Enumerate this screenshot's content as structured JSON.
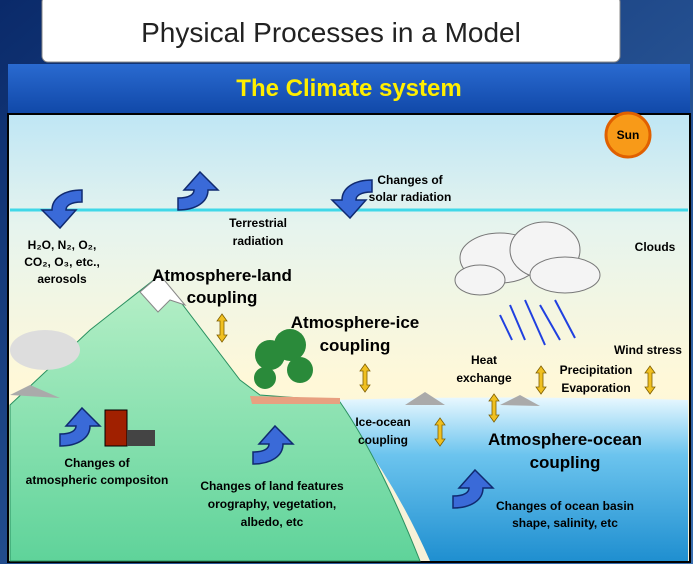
{
  "header": {
    "title": "Physical Processes in a Model"
  },
  "banner": {
    "title": "The Climate system"
  },
  "labels": {
    "sun": [
      "Sun"
    ],
    "solar": [
      "Changes of",
      "solar radiation"
    ],
    "terrestrial": [
      "Terrestrial",
      "radiation"
    ],
    "gases": [
      "H₂O, N₂, O₂,",
      "CO₂, O₃, etc.,",
      "aerosols"
    ],
    "clouds": [
      "Clouds"
    ],
    "atm_land": [
      "Atmosphere-land",
      "coupling"
    ],
    "atm_ice": [
      "Atmosphere-ice",
      "coupling"
    ],
    "heat": [
      "Heat",
      "exchange"
    ],
    "precip": [
      "Precipitation",
      "Evaporation"
    ],
    "wind": [
      "Wind stress"
    ],
    "ice_ocean": [
      "Ice-ocean",
      "coupling"
    ],
    "atm_ocean": [
      "Atmosphere-ocean",
      "coupling"
    ],
    "composition": [
      "Changes of",
      "atmospheric compositon"
    ],
    "land": [
      "Changes of land features",
      "orography, vegetation,",
      "albedo, etc"
    ],
    "ocean_basin": [
      "Changes of ocean basin",
      "shape, salinity, etc"
    ]
  }
}
